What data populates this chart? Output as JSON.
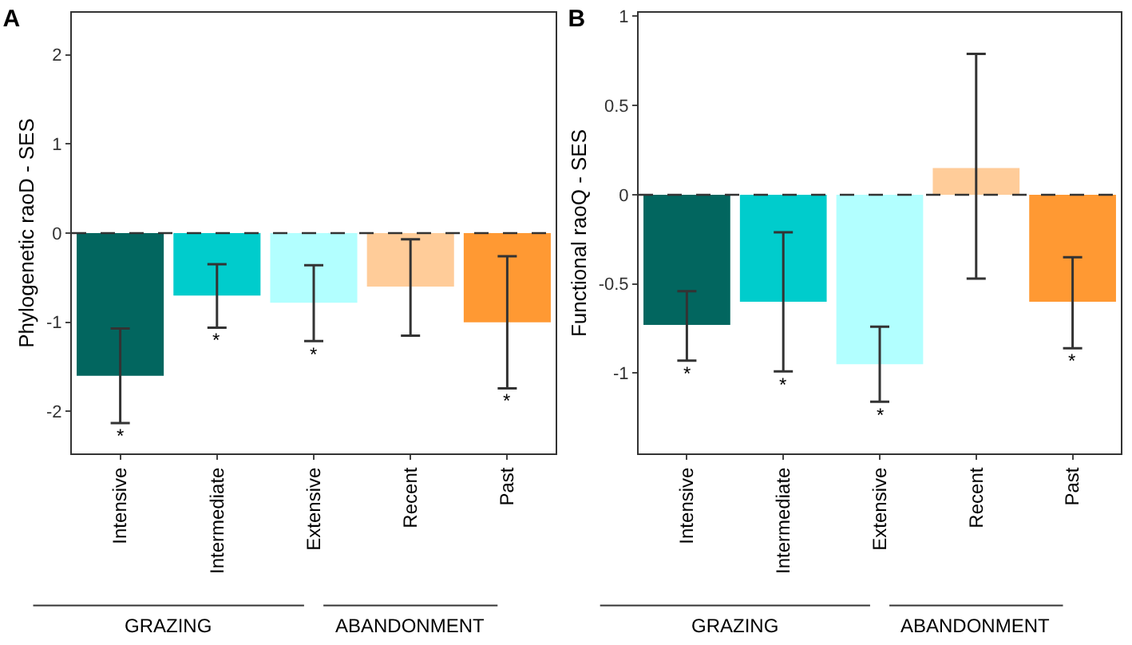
{
  "chart_data": [
    {
      "type": "bar",
      "title": "A",
      "ylabel": "Phylogenetic raoD - SES",
      "categories": [
        "Intensive",
        "Intermediate",
        "Extensive",
        "Recent",
        "Past"
      ],
      "values": [
        -1.6,
        -0.7,
        -0.78,
        -0.6,
        -1.0
      ],
      "colors": [
        "#02665f",
        "#00cccc",
        "#b2ffff",
        "#ffcc99",
        "#ff9933"
      ],
      "errors": [
        [
          -2.13,
          -1.07
        ],
        [
          -1.06,
          -0.35
        ],
        [
          -1.21,
          -0.36
        ],
        [
          -1.15,
          -0.07
        ],
        [
          -1.74,
          -0.26
        ]
      ],
      "ylim": [
        -2.47,
        2.47
      ],
      "yticks": [
        -2,
        -1,
        0,
        1,
        2
      ],
      "grid": false,
      "ref_lines": [
        {
          "axis": "y",
          "value": 0,
          "line_style": "dashed",
          "color": "#333333"
        }
      ],
      "annotations": [
        {
          "text": "*",
          "x": "Intensive",
          "y": -2.13
        },
        {
          "text": "*",
          "x": "Intermediate",
          "y": -1.06
        },
        {
          "text": "*",
          "x": "Extensive",
          "y": -1.21
        },
        {
          "text": "*",
          "x": "Past",
          "y": -1.74
        },
        "GRAZING",
        "ABANDONMENT"
      ]
    },
    {
      "type": "bar",
      "title": "B",
      "ylabel": "Functional raoQ - SES",
      "categories": [
        "Intensive",
        "Intermediate",
        "Extensive",
        "Recent",
        "Past"
      ],
      "values": [
        -0.73,
        -0.6,
        -0.95,
        0.15,
        -0.6
      ],
      "colors": [
        "#02665f",
        "#00cccc",
        "#b2ffff",
        "#ffcc99",
        "#ff9933"
      ],
      "errors": [
        [
          -0.93,
          -0.54
        ],
        [
          -0.99,
          -0.21
        ],
        [
          -1.16,
          -0.74
        ],
        [
          -0.47,
          0.79
        ],
        [
          -0.86,
          -0.35
        ]
      ],
      "ylim": [
        -1.45,
        1.02
      ],
      "yticks": [
        -1,
        -0.5,
        0,
        0.5,
        1
      ],
      "grid": false,
      "ref_lines": [
        {
          "axis": "y",
          "value": 0,
          "line_style": "dashed",
          "color": "#333333"
        }
      ],
      "annotations": [
        {
          "text": "*",
          "x": "Intensive",
          "y": -0.93
        },
        {
          "text": "*",
          "x": "Intermediate",
          "y": -0.99
        },
        {
          "text": "*",
          "x": "Extensive",
          "y": -1.16
        },
        {
          "text": "*",
          "x": "Past",
          "y": -0.86
        },
        "GRAZING",
        "ABANDONMENT"
      ]
    }
  ]
}
